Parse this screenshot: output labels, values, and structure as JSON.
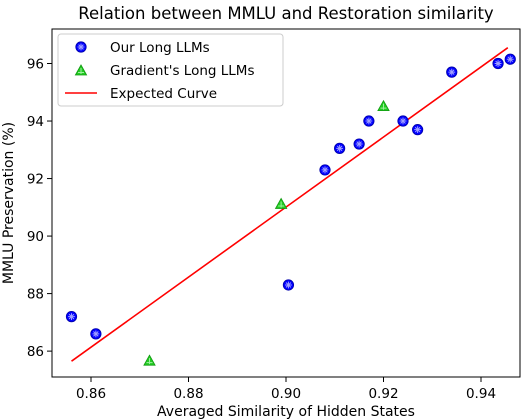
{
  "chart_data": {
    "type": "scatter",
    "title": "Relation between MMLU and Restoration similarity",
    "xlabel": "Averaged Similarity of Hidden States",
    "ylabel": "MMLU Preservation (%)",
    "xlim": [
      0.852,
      0.948
    ],
    "ylim": [
      85.1,
      97.2
    ],
    "x_ticks": [
      "0.86",
      "0.88",
      "0.90",
      "0.92",
      "0.94"
    ],
    "y_ticks": [
      "86",
      "88",
      "90",
      "92",
      "94",
      "96"
    ],
    "grid": false,
    "legend_position": "top-left",
    "series": [
      {
        "name": "Our Long LLMs",
        "marker": "circle",
        "color": "#0000ff",
        "points": [
          {
            "x": 0.856,
            "y": 87.2
          },
          {
            "x": 0.861,
            "y": 86.6
          },
          {
            "x": 0.9005,
            "y": 88.3
          },
          {
            "x": 0.908,
            "y": 92.3
          },
          {
            "x": 0.911,
            "y": 93.05
          },
          {
            "x": 0.915,
            "y": 93.2
          },
          {
            "x": 0.917,
            "y": 94.0
          },
          {
            "x": 0.924,
            "y": 94.0
          },
          {
            "x": 0.927,
            "y": 93.7
          },
          {
            "x": 0.934,
            "y": 95.7
          },
          {
            "x": 0.9435,
            "y": 96.0
          },
          {
            "x": 0.946,
            "y": 96.15
          }
        ]
      },
      {
        "name": "Gradient's Long LLMs",
        "marker": "triangle",
        "color": "#22cc22",
        "points": [
          {
            "x": 0.872,
            "y": 85.65
          },
          {
            "x": 0.899,
            "y": 91.1
          },
          {
            "x": 0.92,
            "y": 94.5
          }
        ]
      },
      {
        "name": "Expected Curve",
        "marker": "line",
        "color": "#ff0000",
        "points": [
          {
            "x": 0.856,
            "y": 85.65
          },
          {
            "x": 0.9455,
            "y": 96.55
          }
        ]
      }
    ]
  }
}
